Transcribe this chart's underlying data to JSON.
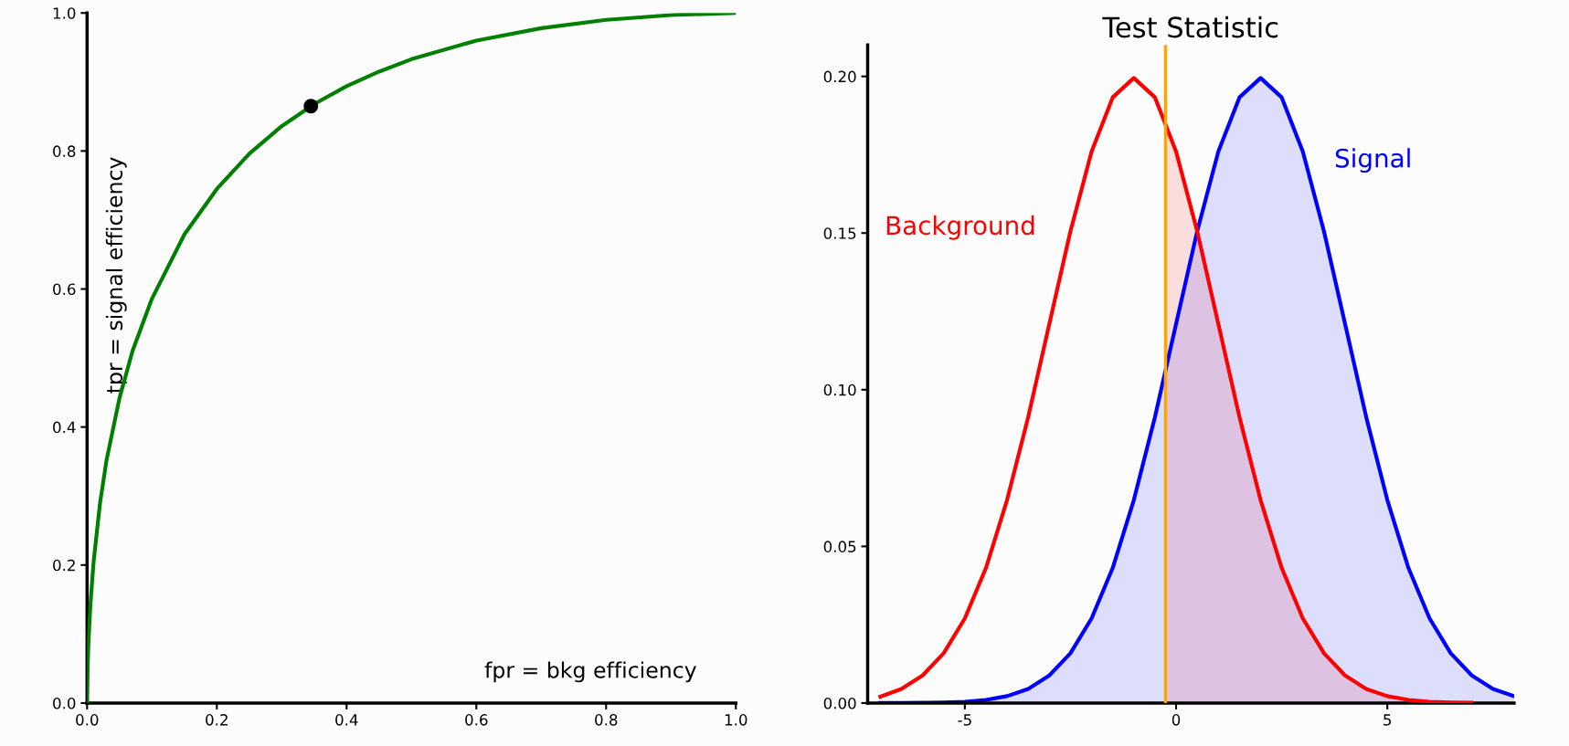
{
  "chart_data": [
    {
      "type": "line",
      "xlabel": "fpr = bkg efficiency",
      "ylabel": "tpr = signal efficiency",
      "xlim": [
        0,
        1
      ],
      "ylim": [
        0,
        1
      ],
      "xticks": [
        {
          "value": 0,
          "label": "0.0"
        },
        0.2,
        0.4,
        0.6,
        0.8,
        {
          "value": 1,
          "label": "1.0"
        }
      ],
      "yticks": [
        {
          "value": 0,
          "label": "0.0"
        },
        0.2,
        0.4,
        0.6,
        0.8,
        {
          "value": 1,
          "label": "1.0"
        }
      ],
      "grid": false,
      "legend": false,
      "series": [
        {
          "color": "#008000",
          "x": [
            0,
            0.001,
            0.002,
            0.005,
            0.01,
            0.02,
            0.03,
            0.05,
            0.07,
            0.1,
            0.15,
            0.2,
            0.25,
            0.3,
            0.35,
            0.4,
            0.45,
            0.5,
            0.6,
            0.7,
            0.8,
            0.9,
            1
          ],
          "values": [
            0,
            0.056,
            0.084,
            0.141,
            0.204,
            0.29,
            0.352,
            0.442,
            0.51,
            0.586,
            0.679,
            0.745,
            0.796,
            0.836,
            0.868,
            0.894,
            0.915,
            0.933,
            0.96,
            0.978,
            0.99,
            0.997,
            1
          ]
        },
        {
          "type": "scatter",
          "color": "#000000",
          "marker": "circle",
          "x": [
            0.345
          ],
          "values": [
            0.865
          ]
        }
      ]
    },
    {
      "type": "line",
      "title": "Test Statistic",
      "x": [
        -7,
        -6.5,
        -6,
        -5.5,
        -5,
        -4.5,
        -4,
        -3.5,
        -3,
        -2.5,
        -2,
        -1.5,
        -1,
        -0.5,
        0,
        0.5,
        1,
        1.5,
        2,
        2.5,
        3,
        3.5,
        4,
        4.5,
        5,
        5.5,
        6,
        6.5,
        7,
        7.5,
        8
      ],
      "xlim": [
        -7.3,
        8
      ],
      "ylim": [
        0,
        0.21
      ],
      "xticks": [
        -5,
        0,
        5
      ],
      "yticks": [
        {
          "value": 0,
          "label": "0.00"
        },
        0.05,
        {
          "value": 0.1,
          "label": "0.10"
        },
        0.15,
        {
          "value": 0.2,
          "label": "0.20"
        }
      ],
      "grid": false,
      "legend": false,
      "ref_lines": [
        {
          "axis": "x",
          "value": -0.25,
          "color": "#ffa500"
        }
      ],
      "series": [
        {
          "name": "Background",
          "color": "#ff0000",
          "values": [
            0.002,
            0.0045,
            0.0088,
            0.0159,
            0.027,
            0.0431,
            0.0648,
            0.0913,
            0.121,
            0.1506,
            0.176,
            0.1933,
            0.1995,
            0.1933,
            0.176,
            0.1506,
            0.121,
            0.0913,
            0.0648,
            0.0431,
            0.027,
            0.0159,
            0.0088,
            0.0045,
            0.0022,
            0.001,
            0.0004,
            0.0002,
            0.0001,
            null,
            null
          ]
        },
        {
          "type": "area",
          "color": "#ff0000",
          "x": [
            -0.25,
            0,
            0.5,
            1,
            1.5,
            2,
            2.5,
            3,
            3.5,
            4,
            4.5,
            5,
            5.5,
            6,
            6.5,
            7,
            7.5,
            8
          ],
          "values": [
            0.185,
            0.176,
            0.1506,
            0.121,
            0.0913,
            0.0648,
            0.0431,
            0.027,
            0.0159,
            0.0088,
            0.0045,
            0.0022,
            0.001,
            0.0004,
            0.0002,
            0.0001,
            0,
            0
          ]
        },
        {
          "type": "area",
          "name": "Signal",
          "color": "#0000ff",
          "values": [
            0,
            0,
            0.0001,
            0.0002,
            0.0004,
            0.001,
            0.0022,
            0.0045,
            0.0088,
            0.0159,
            0.027,
            0.0431,
            0.0648,
            0.0913,
            0.121,
            0.1506,
            0.176,
            0.1933,
            0.1995,
            0.1933,
            0.176,
            0.1506,
            0.121,
            0.0913,
            0.0648,
            0.0431,
            0.027,
            0.0159,
            0.0088,
            0.0045,
            0.0022
          ]
        }
      ]
    }
  ]
}
